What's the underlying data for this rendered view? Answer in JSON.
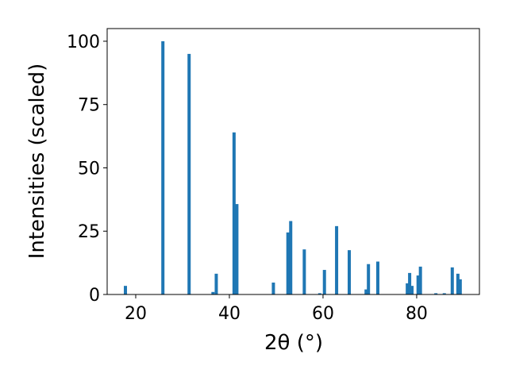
{
  "chart_data": {
    "type": "bar",
    "xlabel": "2θ (°)",
    "ylabel": "Intensities (scaled)",
    "x": [
      17.8,
      25.8,
      31.4,
      36.5,
      37.2,
      41.0,
      41.6,
      49.4,
      52.5,
      53.1,
      56.0,
      59.3,
      60.3,
      62.9,
      65.6,
      69.2,
      69.7,
      71.7,
      78.0,
      78.5,
      79.0,
      80.3,
      80.8,
      84.1,
      85.9,
      87.6,
      88.8,
      89.3
    ],
    "values": [
      3.4,
      100,
      95,
      1,
      8.2,
      64,
      35.7,
      4.7,
      24.5,
      29,
      17.8,
      0.5,
      9.7,
      27,
      17.5,
      2,
      12,
      13,
      4.4,
      8.5,
      3.4,
      7.5,
      11,
      0.5,
      0.5,
      10.7,
      8.2,
      6
    ],
    "color": "#1f77b4",
    "xlim": [
      13.9,
      93.4
    ],
    "ylim": [
      0,
      105
    ],
    "xticks": [
      20,
      40,
      60,
      80
    ],
    "yticks": [
      0,
      25,
      50,
      75,
      100
    ]
  }
}
